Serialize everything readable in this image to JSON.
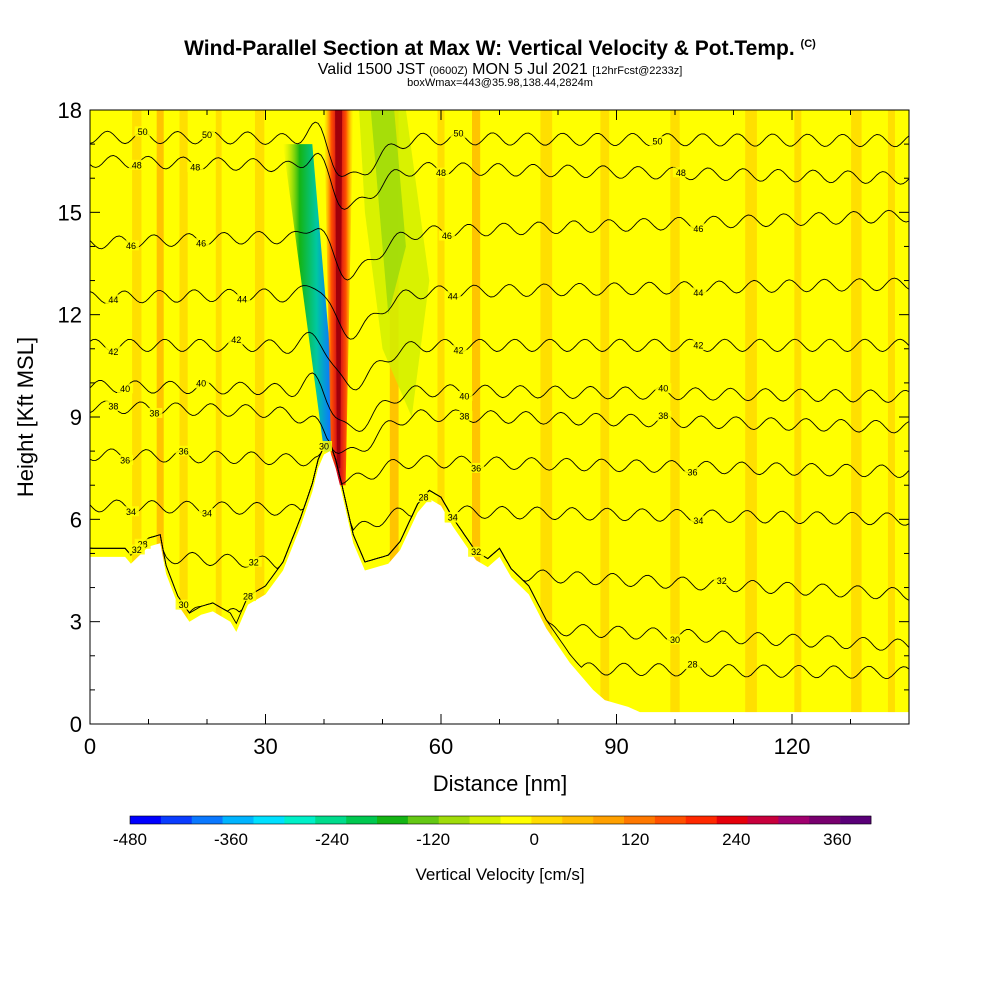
{
  "title": {
    "main": "Wind-Parallel Section at Max W: Vertical Velocity & Pot.Temp.",
    "copyright": "(C)",
    "valid_prefix": "Valid 1500 JST",
    "utc": "(0600Z)",
    "valid_date": "MON 5 Jul 2021",
    "forecast": "[12hrFcst@2233z]",
    "boxwmax": "boxWmax=443@35.98,138.44,2824m"
  },
  "chart_data": {
    "type": "heatmap",
    "xlabel": "Distance [nm]",
    "ylabel": "Height [Kft MSL]",
    "xlim": [
      0,
      140
    ],
    "ylim": [
      0,
      18
    ],
    "x_ticks": [
      0,
      30,
      60,
      90,
      120
    ],
    "y_ticks": [
      0,
      3,
      6,
      9,
      12,
      15,
      18
    ],
    "colorbar": {
      "label": "Vertical Velocity [cm/s]",
      "tick_values": [
        -480,
        -360,
        -240,
        -120,
        0,
        120,
        240,
        360
      ],
      "tick_labels": [
        "-480",
        "-360",
        "-240",
        "-120",
        "0",
        "120",
        "240",
        "360"
      ],
      "range": [
        -480,
        400
      ],
      "colors": [
        "#0000ff",
        "#0a3cff",
        "#0a78ff",
        "#00b4ff",
        "#00e0ff",
        "#00f0c8",
        "#00dc8c",
        "#00c850",
        "#14b414",
        "#64c814",
        "#a0dc0a",
        "#d2f000",
        "#ffff00",
        "#ffdc00",
        "#ffbe00",
        "#ffa000",
        "#ff7800",
        "#ff5000",
        "#ff2800",
        "#e6000a",
        "#c8003c",
        "#a0006e",
        "#78006e",
        "#5a0078"
      ]
    },
    "terrain_kft": [
      [
        0,
        4.9
      ],
      [
        6,
        4.9
      ],
      [
        7,
        4.7
      ],
      [
        10,
        5.2
      ],
      [
        12,
        5.3
      ],
      [
        13,
        4.4
      ],
      [
        15,
        3.5
      ],
      [
        17,
        3.0
      ],
      [
        19,
        3.2
      ],
      [
        21,
        3.3
      ],
      [
        24,
        3.0
      ],
      [
        25,
        2.7
      ],
      [
        27,
        3.5
      ],
      [
        30,
        3.8
      ],
      [
        33,
        4.5
      ],
      [
        36,
        5.8
      ],
      [
        38,
        6.8
      ],
      [
        39,
        7.5
      ],
      [
        40,
        7.9
      ],
      [
        41,
        8.0
      ],
      [
        42,
        7.5
      ],
      [
        43,
        6.8
      ],
      [
        45,
        5.3
      ],
      [
        47,
        4.5
      ],
      [
        49,
        4.6
      ],
      [
        51,
        4.7
      ],
      [
        53,
        5.1
      ],
      [
        56,
        6.2
      ],
      [
        58,
        6.6
      ],
      [
        60,
        6.4
      ],
      [
        62,
        5.8
      ],
      [
        64,
        5.3
      ],
      [
        66,
        4.8
      ],
      [
        68,
        4.6
      ],
      [
        70,
        4.9
      ],
      [
        72,
        4.3
      ],
      [
        75,
        3.8
      ],
      [
        78,
        2.8
      ],
      [
        80,
        2.3
      ],
      [
        82,
        1.8
      ],
      [
        84,
        1.4
      ],
      [
        86,
        1.0
      ],
      [
        88,
        0.7
      ],
      [
        92,
        0.5
      ],
      [
        94,
        0.35
      ],
      [
        140,
        0.35
      ]
    ],
    "theta_contours": [
      {
        "value": 28,
        "label": "28",
        "height_west": 1.8,
        "height_east": 1.5
      },
      {
        "value": 30,
        "label": "30",
        "height_west": 3.4,
        "height_east": 2.3
      },
      {
        "value": 32,
        "label": "32",
        "height_west": 5.0,
        "height_east": 3.8
      },
      {
        "value": 34,
        "label": "34",
        "height_west": 6.4,
        "height_east": 6.0
      },
      {
        "value": 36,
        "label": "36",
        "height_west": 7.9,
        "height_east": 7.4
      },
      {
        "value": 38,
        "label": "38",
        "height_west": 9.3,
        "height_east": 8.7
      },
      {
        "value": 40,
        "label": "40",
        "height_west": 9.9,
        "height_east": 9.6
      },
      {
        "value": 42,
        "label": "42",
        "height_west": 11.1,
        "height_east": 11.1
      },
      {
        "value": 44,
        "label": "44",
        "height_west": 12.5,
        "height_east": 12.9
      },
      {
        "value": 46,
        "label": "46",
        "height_west": 14.1,
        "height_east": 14.9
      },
      {
        "value": 48,
        "label": "48",
        "height_west": 16.5,
        "height_east": 16.0
      },
      {
        "value": 50,
        "label": "50",
        "height_west": 17.2,
        "height_east": 17.1
      }
    ],
    "updraft_core": {
      "x_center_bottom": 42.5,
      "x_center_top": 42.5,
      "bottom_kft": 7.0,
      "top_kft": 18,
      "w_max": 443
    },
    "downdraft_core": {
      "x_center_bottom": 41,
      "x_center_top": 35,
      "bottom_kft": 8.0,
      "top_kft": 17,
      "w_min": -420
    }
  }
}
